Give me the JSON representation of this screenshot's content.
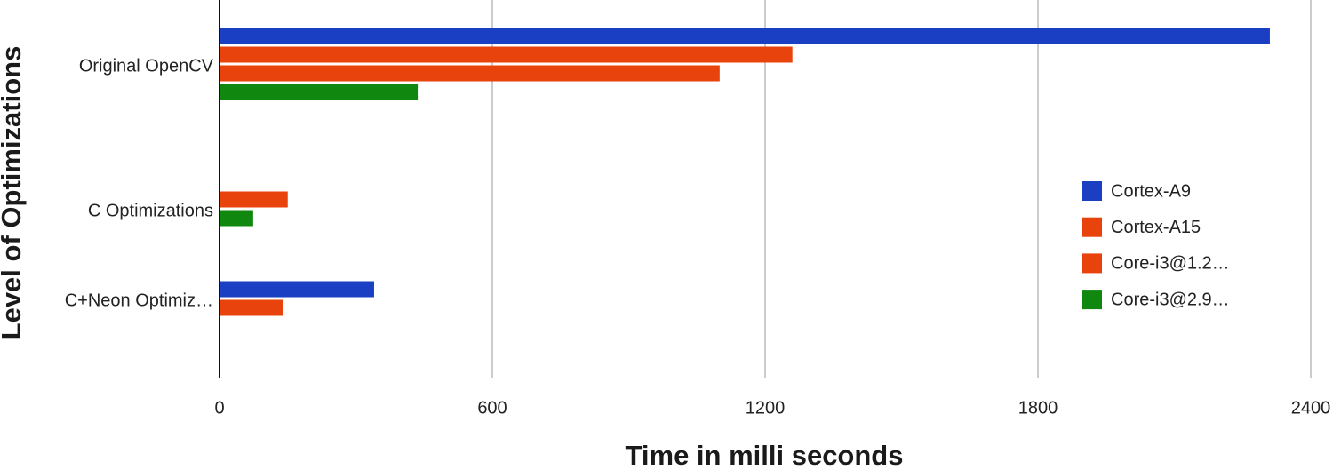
{
  "chart_data": {
    "type": "hbar",
    "x_label": "Time in milli seconds",
    "y_label": "Level of Optimizations",
    "categories": [
      "Original OpenCV",
      "C Optimizations",
      "C+Neon Optimiz…"
    ],
    "series": [
      {
        "name": "Cortex-A9",
        "color": "#1a3fc2",
        "values": [
          2310,
          null,
          340
        ]
      },
      {
        "name": "Cortex-A15",
        "color": "#e8430c",
        "values": [
          1260,
          150,
          139
        ]
      },
      {
        "name": "Core-i3@1.2…",
        "color": "#e8430c",
        "values": [
          1100,
          null,
          null
        ]
      },
      {
        "name": "Core-i3@2.9…",
        "color": "#10870f",
        "values": [
          436,
          74,
          null
        ]
      }
    ],
    "xlim": [
      0,
      2400
    ],
    "xticks": [
      0,
      600,
      1200,
      1800,
      2400
    ],
    "grid": true,
    "legend": "right"
  }
}
